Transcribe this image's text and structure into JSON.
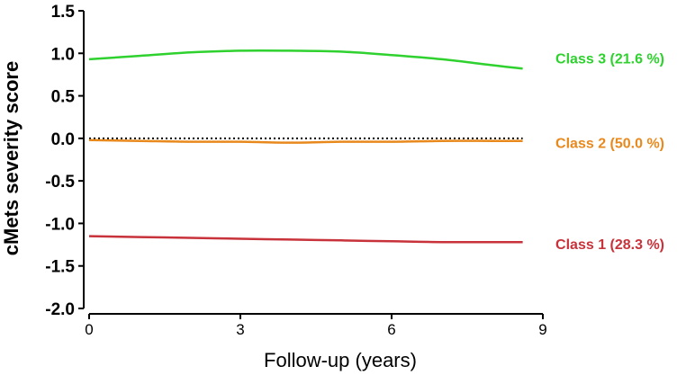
{
  "chart_data": {
    "type": "line",
    "xlabel": "Follow-up (years)",
    "ylabel": "cMets severity score",
    "xlim": [
      0,
      9
    ],
    "ylim": [
      -2.0,
      1.5
    ],
    "x_ticks": [
      "0",
      "3",
      "6",
      "9"
    ],
    "y_ticks": [
      "1.5",
      "1.0",
      "0.5",
      "0.0",
      "-0.5",
      "-1.0",
      "-1.5",
      "-2.0"
    ],
    "grid": false,
    "reference_line": {
      "y": 0.0,
      "style": "dotted"
    },
    "series": [
      {
        "name": "Class 3 (21.6 %)",
        "color": "#2ed12e",
        "x": [
          0,
          1,
          2,
          3,
          4,
          5,
          6,
          7,
          8,
          8.6
        ],
        "y": [
          0.93,
          0.97,
          1.01,
          1.03,
          1.03,
          1.02,
          0.98,
          0.93,
          0.86,
          0.82
        ]
      },
      {
        "name": "Class 2 (50.0 %)",
        "color": "#e8891e",
        "x": [
          0,
          1,
          2,
          3,
          4,
          5,
          6,
          7,
          8,
          8.6
        ],
        "y": [
          -0.02,
          -0.03,
          -0.04,
          -0.04,
          -0.05,
          -0.04,
          -0.04,
          -0.03,
          -0.03,
          -0.03
        ]
      },
      {
        "name": "Class 1 (28.3 %)",
        "color": "#c8323a",
        "x": [
          0,
          1,
          2,
          3,
          4,
          5,
          6,
          7,
          8,
          8.6
        ],
        "y": [
          -1.15,
          -1.16,
          -1.17,
          -1.18,
          -1.19,
          -1.2,
          -1.21,
          -1.22,
          -1.22,
          -1.22
        ]
      }
    ]
  }
}
